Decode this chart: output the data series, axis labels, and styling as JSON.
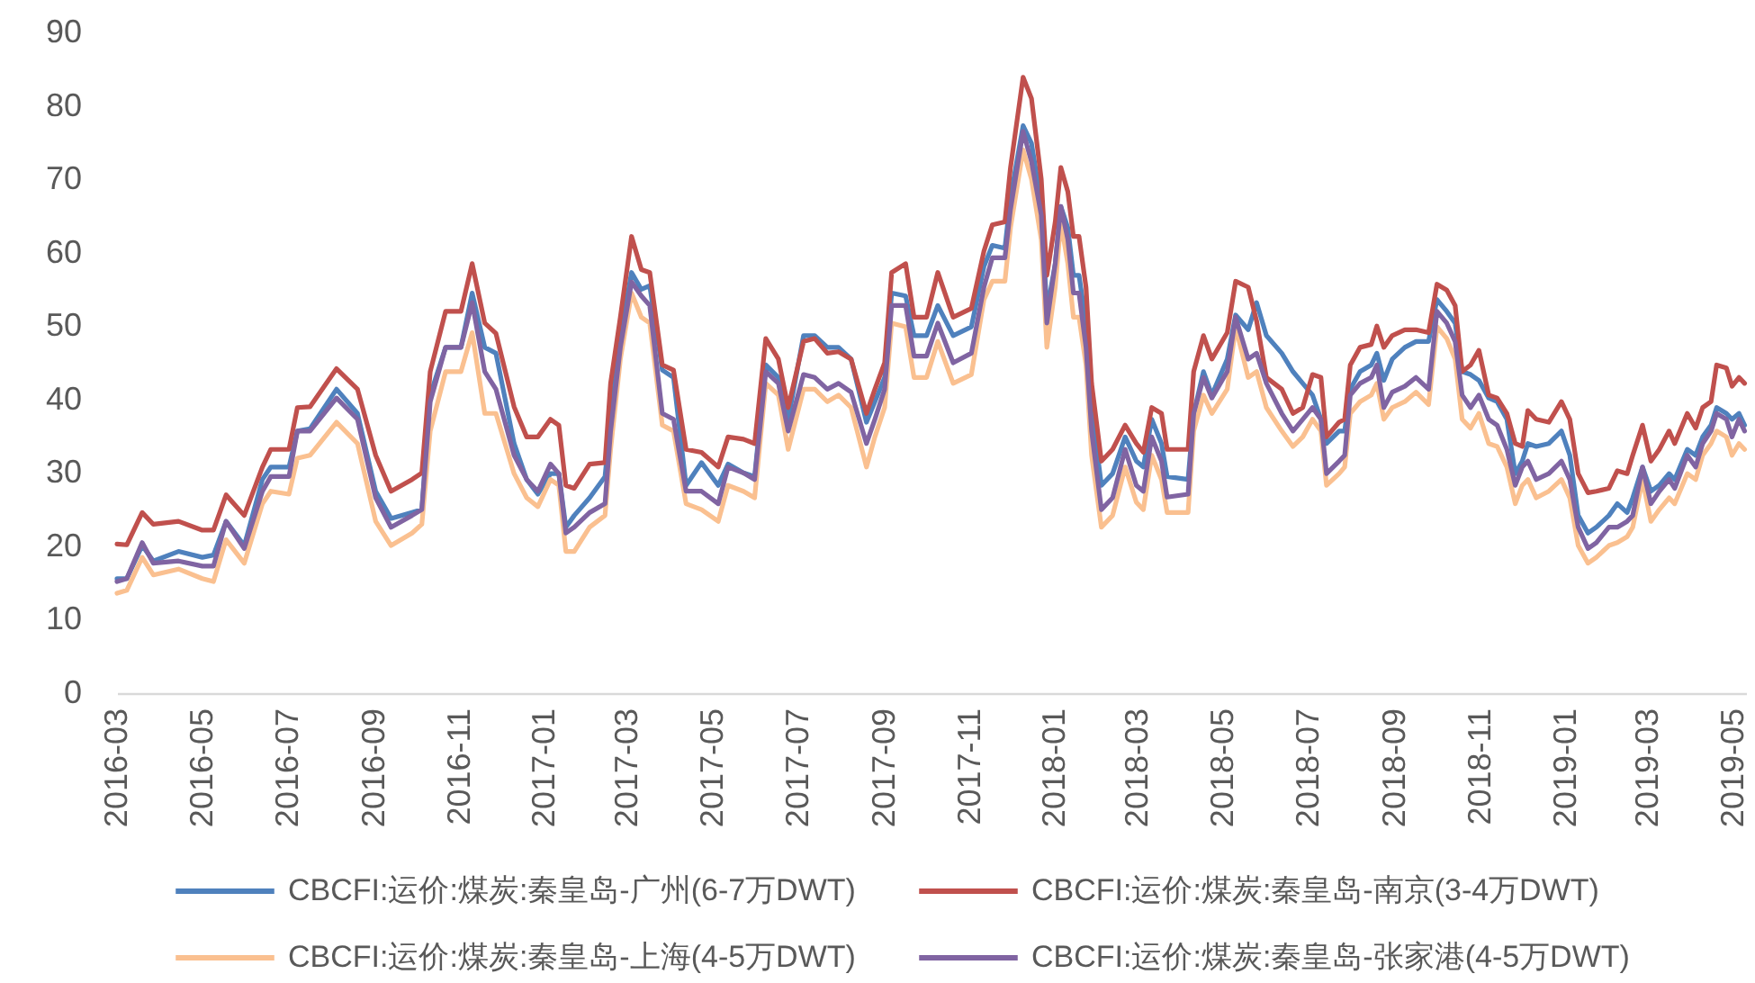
{
  "chart_data": {
    "type": "line",
    "x": [
      "2016-03-01",
      "2016-03-08",
      "2016-03-19",
      "2016-03-27",
      "2016-04-14",
      "2016-05-01",
      "2016-05-09",
      "2016-05-18",
      "2016-05-31",
      "2016-06-13",
      "2016-06-19",
      "2016-07-02",
      "2016-07-08",
      "2016-07-17",
      "2016-08-05",
      "2016-08-20",
      "2016-09-02",
      "2016-09-13",
      "2016-09-28",
      "2016-10-05",
      "2016-10-11",
      "2016-10-22",
      "2016-11-02",
      "2016-11-10",
      "2016-11-19",
      "2016-11-27",
      "2016-12-10",
      "2016-12-19",
      "2016-12-27",
      "2017-01-05",
      "2017-01-11",
      "2017-01-16",
      "2017-01-22",
      "2017-02-02",
      "2017-02-13",
      "2017-02-17",
      "2017-02-24",
      "2017-03-04",
      "2017-03-11",
      "2017-03-17",
      "2017-03-26",
      "2017-04-03",
      "2017-04-12",
      "2017-04-23",
      "2017-05-05",
      "2017-05-12",
      "2017-05-23",
      "2017-05-31",
      "2017-06-08",
      "2017-06-17",
      "2017-06-24",
      "2017-07-05",
      "2017-07-13",
      "2017-07-22",
      "2017-07-30",
      "2017-08-08",
      "2017-08-19",
      "2017-08-25",
      "2017-09-01",
      "2017-09-06",
      "2017-09-16",
      "2017-09-22",
      "2017-10-01",
      "2017-10-09",
      "2017-10-20",
      "2017-11-02",
      "2017-11-11",
      "2017-11-17",
      "2017-11-26",
      "2017-11-30",
      "2017-12-09",
      "2017-12-15",
      "2017-12-22",
      "2017-12-26",
      "2018-01-01",
      "2018-01-05",
      "2018-01-10",
      "2018-01-14",
      "2018-01-18",
      "2018-01-23",
      "2018-01-27",
      "2018-02-03",
      "2018-02-11",
      "2018-02-20",
      "2018-02-28",
      "2018-03-05",
      "2018-03-11",
      "2018-03-18",
      "2018-03-22",
      "2018-04-06",
      "2018-04-10",
      "2018-04-17",
      "2018-04-23",
      "2018-05-04",
      "2018-05-10",
      "2018-05-19",
      "2018-05-25",
      "2018-06-01",
      "2018-06-12",
      "2018-06-20",
      "2018-06-27",
      "2018-07-04",
      "2018-07-10",
      "2018-07-14",
      "2018-07-23",
      "2018-07-27",
      "2018-07-31",
      "2018-08-07",
      "2018-08-15",
      "2018-08-19",
      "2018-08-24",
      "2018-08-30",
      "2018-09-08",
      "2018-09-16",
      "2018-09-25",
      "2018-10-01",
      "2018-10-08",
      "2018-10-14",
      "2018-10-19",
      "2018-10-25",
      "2018-10-31",
      "2018-11-07",
      "2018-11-13",
      "2018-11-20",
      "2018-11-26",
      "2018-12-01",
      "2018-12-05",
      "2018-12-11",
      "2018-12-20",
      "2018-12-29",
      "2019-01-04",
      "2019-01-10",
      "2019-01-17",
      "2019-01-23",
      "2019-02-01",
      "2019-02-07",
      "2019-02-14",
      "2019-02-18",
      "2019-02-25",
      "2019-03-03",
      "2019-03-09",
      "2019-03-16",
      "2019-03-20",
      "2019-03-29",
      "2019-04-04",
      "2019-04-09",
      "2019-04-15",
      "2019-04-19",
      "2019-04-26",
      "2019-04-30",
      "2019-05-05",
      "2019-05-09"
    ],
    "series": [
      {
        "name": "CBCFI:运价:煤炭:秦皇岛-广州(6-7万DWT)",
        "color": "#4f81bd",
        "values": [
          15.6,
          15.6,
          20.1,
          18,
          19.3,
          18.5,
          18.8,
          23.4,
          20.1,
          29.1,
          30.8,
          30.8,
          35.7,
          36,
          41.4,
          38.1,
          27.5,
          23.8,
          24.6,
          25,
          40.6,
          47.1,
          47.1,
          54.5,
          47.1,
          46.3,
          34,
          29.1,
          27.1,
          29.9,
          29.9,
          22.6,
          24.2,
          26.6,
          29.5,
          37.3,
          48.7,
          57.3,
          55,
          55.5,
          44,
          43,
          28.3,
          31.4,
          28.3,
          31.2,
          30,
          29.5,
          44.7,
          43,
          37.3,
          48.7,
          48.7,
          47.1,
          47.1,
          45.5,
          36.9,
          39.7,
          43,
          54.5,
          54.1,
          48.7,
          48.7,
          52.8,
          48.7,
          49.9,
          58.1,
          61,
          60.6,
          67.5,
          77.3,
          74.9,
          66.7,
          52,
          58.5,
          66.3,
          63.4,
          56.9,
          56.9,
          50.4,
          38.9,
          28.3,
          29.9,
          34.9,
          31.6,
          30.8,
          37.3,
          34,
          29.5,
          29.1,
          38.1,
          43.8,
          40.6,
          45.5,
          51.5,
          49.5,
          53.2,
          48.7,
          46.3,
          43.8,
          42.2,
          40.6,
          37.3,
          34,
          35.7,
          35.7,
          41.4,
          43.8,
          44.7,
          46.3,
          42.6,
          45.5,
          47.1,
          47.9,
          47.9,
          53.6,
          52,
          50.4,
          43.8,
          43.4,
          42.6,
          40.2,
          39.7,
          37.3,
          29.9,
          31.6,
          34,
          33.6,
          34,
          35.7,
          32.4,
          24.2,
          21.8,
          22.6,
          24.2,
          25.8,
          24.6,
          26.6,
          30.8,
          27.5,
          28.3,
          29.9,
          29.1,
          33.2,
          32.4,
          34.9,
          36.5,
          38.9,
          38.1,
          37.3,
          38.1,
          36.5
        ]
      },
      {
        "name": "CBCFI:运价:煤炭:秦皇岛-南京(3-4万DWT)",
        "color": "#c0504d",
        "values": [
          20.3,
          20.2,
          24.6,
          23,
          23.4,
          22.2,
          22.2,
          27,
          24.2,
          30.8,
          33.2,
          33.2,
          38.9,
          39,
          44.2,
          41.4,
          32.4,
          27.5,
          29.1,
          30,
          43.8,
          52,
          52,
          58.5,
          50.4,
          49,
          39,
          34.9,
          34.9,
          37.3,
          36.5,
          28.3,
          27.9,
          31.2,
          31.4,
          42.2,
          51.2,
          62.2,
          57.7,
          57.3,
          44.7,
          44,
          33.2,
          32.8,
          30.8,
          34.9,
          34.6,
          34,
          48.3,
          45.5,
          38.9,
          47.9,
          48.3,
          46.3,
          46.5,
          45.5,
          38.1,
          41.4,
          45,
          57.3,
          58.5,
          51.2,
          51.2,
          57.3,
          51.2,
          52.4,
          60.2,
          63.8,
          64.2,
          71.6,
          83.9,
          81,
          70,
          56.9,
          64.2,
          71.6,
          68.3,
          62.2,
          62.2,
          55.3,
          42.2,
          31.6,
          33.2,
          36.5,
          34,
          32.8,
          38.9,
          38.1,
          33.2,
          33.2,
          43.8,
          48.7,
          45.5,
          49.1,
          56.1,
          55.3,
          50.7,
          43,
          41.4,
          38.1,
          38.9,
          43.4,
          43,
          34.9,
          36.9,
          37.3,
          44.7,
          47.1,
          47.5,
          50,
          47.1,
          48.7,
          49.5,
          49.5,
          49.1,
          55.7,
          54.9,
          52.8,
          43.8,
          44.7,
          46.7,
          40.6,
          40.2,
          38.1,
          34,
          33.6,
          38.5,
          37.3,
          36.9,
          39.7,
          37.3,
          29.9,
          27.3,
          27.5,
          27.9,
          30.3,
          29.9,
          32.4,
          36.5,
          31.6,
          33.2,
          35.7,
          34,
          38.1,
          36.1,
          38.9,
          39.7,
          44.7,
          44.3,
          41.8,
          43,
          42.2
        ]
      },
      {
        "name": "CBCFI:运价:煤炭:秦皇岛-上海(4-5万DWT)",
        "color": "#fac090",
        "values": [
          13.6,
          14,
          18.5,
          16.1,
          16.9,
          15.6,
          15.2,
          20.9,
          17.7,
          25.8,
          27.5,
          27.1,
          32,
          32.4,
          36.9,
          34,
          23.4,
          20.1,
          21.8,
          23,
          35.7,
          43.8,
          43.8,
          49.1,
          38.1,
          38.1,
          29.9,
          26.6,
          25.4,
          29.1,
          28.3,
          19.3,
          19.3,
          22.6,
          24.2,
          33.2,
          45.5,
          54.5,
          51.2,
          50.4,
          36.5,
          35.7,
          25.8,
          25,
          23.4,
          28.3,
          27.5,
          26.6,
          42.2,
          40.6,
          33.2,
          41.4,
          41.4,
          39.7,
          40.6,
          38.9,
          30.8,
          34.9,
          38.9,
          50.4,
          49.9,
          43,
          43,
          47.9,
          42.2,
          43.4,
          53.6,
          56.1,
          56.1,
          63.4,
          74,
          70,
          61.8,
          47.1,
          55.3,
          64.2,
          58.5,
          51.2,
          51.2,
          44.7,
          32.4,
          22.6,
          24.2,
          30.8,
          26,
          25,
          32.4,
          29.1,
          24.6,
          24.6,
          35.7,
          40.6,
          38.1,
          41.4,
          49.9,
          43,
          43.8,
          38.9,
          35.7,
          33.6,
          34.9,
          37.3,
          35.7,
          28.3,
          29.9,
          30.8,
          38.1,
          39.7,
          40.6,
          42.2,
          37.3,
          38.9,
          39.7,
          41,
          39.3,
          49.9,
          48.3,
          45.5,
          37.3,
          36.1,
          38.1,
          34,
          33.6,
          30.8,
          25.8,
          28.3,
          29.1,
          26.6,
          27.5,
          29.1,
          26.6,
          20.1,
          17.7,
          18.5,
          20.1,
          20.5,
          21.3,
          22.6,
          29.1,
          23.4,
          25,
          26.6,
          25.8,
          29.9,
          29.1,
          32.4,
          34,
          35.7,
          34.9,
          32.4,
          34,
          33.2
        ]
      },
      {
        "name": "CBCFI:运价:煤炭:秦皇岛-张家港(4-5万DWT)",
        "color": "#8064a2",
        "values": [
          15.2,
          15.6,
          20.5,
          17.7,
          18,
          17.3,
          17.3,
          23.4,
          19.7,
          27.5,
          29.5,
          29.5,
          35.7,
          35.7,
          40.2,
          37.3,
          26.6,
          22.6,
          24.2,
          25,
          39.7,
          47.1,
          47.1,
          53.2,
          43.8,
          41.4,
          32.4,
          29.1,
          27.5,
          31.2,
          29.9,
          21.8,
          22.6,
          24.6,
          25.8,
          35.7,
          47.1,
          56,
          54.1,
          52.8,
          38.1,
          37.3,
          27.5,
          27.5,
          25.8,
          30.8,
          30,
          29.1,
          43.8,
          42.2,
          35.7,
          43.4,
          43,
          41.4,
          42.2,
          41,
          34,
          37.3,
          41.4,
          52.8,
          52.8,
          45.9,
          45.9,
          50.4,
          45,
          46.3,
          55.3,
          59.3,
          59.3,
          65.9,
          76.5,
          72.4,
          65.1,
          50.4,
          58.5,
          66.3,
          61.8,
          54.5,
          54.5,
          47.1,
          35.7,
          25,
          26.6,
          33.2,
          28.3,
          27.5,
          34.9,
          31.6,
          26.7,
          27.1,
          38.1,
          43,
          40.2,
          43.8,
          51.2,
          45.5,
          46.3,
          42.2,
          38.1,
          35.7,
          37.3,
          38.9,
          37.3,
          29.9,
          31.6,
          32.4,
          40.6,
          42.2,
          43,
          44.7,
          38.9,
          41,
          41.8,
          43,
          41.4,
          52,
          50.4,
          47.9,
          40.6,
          38.9,
          40.6,
          37.3,
          36.5,
          33.2,
          28.3,
          30.8,
          31.6,
          29.1,
          29.9,
          31.6,
          29.1,
          22.6,
          19.7,
          20.5,
          22.6,
          22.6,
          23.4,
          24.2,
          30.8,
          25.8,
          27.5,
          29.1,
          27.9,
          32.4,
          30.8,
          34,
          35.7,
          38.1,
          37.3,
          34.9,
          37.3,
          35.7
        ]
      }
    ],
    "xlim": [
      "2016-03-01",
      "2019-05-10"
    ],
    "xticks": [
      "2016-03",
      "2016-05",
      "2016-07",
      "2016-09",
      "2016-11",
      "2017-01",
      "2017-03",
      "2017-05",
      "2017-07",
      "2017-09",
      "2017-11",
      "2018-01",
      "2018-03",
      "2018-05",
      "2018-07",
      "2018-09",
      "2018-11",
      "2019-01",
      "2019-03",
      "2019-05"
    ],
    "ylim": [
      0,
      90
    ],
    "yticks": [
      0,
      10,
      20,
      30,
      40,
      50,
      60,
      70,
      80,
      90
    ],
    "legend": "bottom"
  }
}
